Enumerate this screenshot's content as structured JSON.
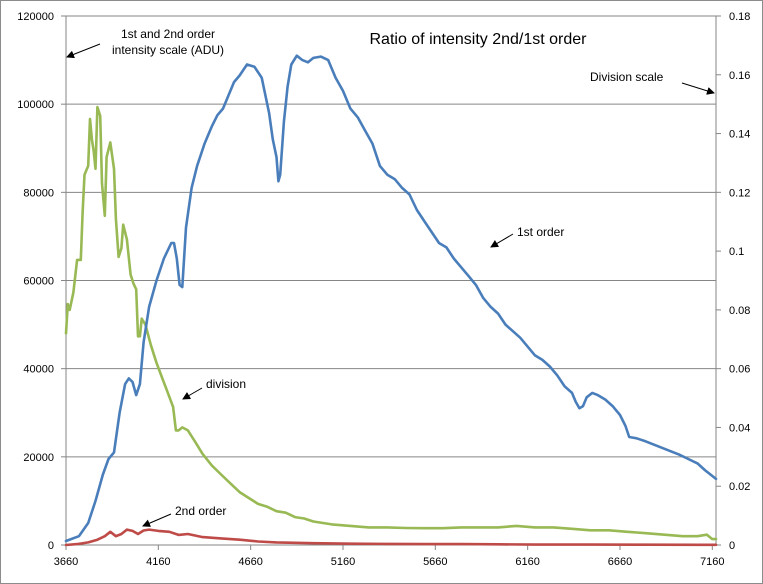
{
  "chart_data": {
    "type": "line",
    "title": "Ratio of intensity 2nd/1st order",
    "x_ticks": [
      3660,
      4160,
      4660,
      5160,
      5660,
      6160,
      6660,
      7160
    ],
    "xlim": [
      3660,
      7180
    ],
    "y_left": {
      "ticks": [
        0,
        20000,
        40000,
        60000,
        80000,
        100000,
        120000
      ],
      "ylim": [
        0,
        120000
      ]
    },
    "y_right": {
      "ticks": [
        "0",
        "0.02",
        "0.04",
        "0.06",
        "0.08",
        "0.1",
        "0.12",
        "0.14",
        "0.16",
        "0.18"
      ],
      "ylim": [
        0,
        0.18
      ]
    },
    "grid": true,
    "colors": {
      "first": "#4a7ebb",
      "second": "#be4b48",
      "division": "#98b954",
      "grid": "#868686"
    },
    "series": [
      {
        "name": "1st order",
        "axis": "left",
        "points": [
          [
            3660,
            900
          ],
          [
            3730,
            2000
          ],
          [
            3780,
            5000
          ],
          [
            3820,
            10000
          ],
          [
            3860,
            16000
          ],
          [
            3890,
            19500
          ],
          [
            3920,
            21000
          ],
          [
            3950,
            30000
          ],
          [
            3980,
            36500
          ],
          [
            4000,
            37800
          ],
          [
            4020,
            37000
          ],
          [
            4040,
            34000
          ],
          [
            4060,
            36500
          ],
          [
            4080,
            46000
          ],
          [
            4110,
            54000
          ],
          [
            4150,
            60000
          ],
          [
            4190,
            65000
          ],
          [
            4230,
            68500
          ],
          [
            4245,
            68500
          ],
          [
            4260,
            65000
          ],
          [
            4275,
            59000
          ],
          [
            4290,
            58500
          ],
          [
            4310,
            72000
          ],
          [
            4340,
            81000
          ],
          [
            4370,
            86000
          ],
          [
            4410,
            91000
          ],
          [
            4450,
            95000
          ],
          [
            4480,
            97500
          ],
          [
            4510,
            99000
          ],
          [
            4540,
            102000
          ],
          [
            4570,
            105000
          ],
          [
            4600,
            106500
          ],
          [
            4640,
            109000
          ],
          [
            4680,
            108500
          ],
          [
            4720,
            106000
          ],
          [
            4760,
            98000
          ],
          [
            4780,
            92000
          ],
          [
            4800,
            88000
          ],
          [
            4810,
            82500
          ],
          [
            4820,
            84000
          ],
          [
            4840,
            96000
          ],
          [
            4860,
            104000
          ],
          [
            4880,
            109000
          ],
          [
            4910,
            111000
          ],
          [
            4940,
            110000
          ],
          [
            4970,
            109500
          ],
          [
            5000,
            110500
          ],
          [
            5040,
            110800
          ],
          [
            5080,
            110000
          ],
          [
            5120,
            106000
          ],
          [
            5160,
            103000
          ],
          [
            5200,
            99000
          ],
          [
            5240,
            97000
          ],
          [
            5280,
            94000
          ],
          [
            5320,
            91000
          ],
          [
            5360,
            86000
          ],
          [
            5400,
            84000
          ],
          [
            5440,
            83000
          ],
          [
            5480,
            81000
          ],
          [
            5520,
            79500
          ],
          [
            5560,
            76000
          ],
          [
            5600,
            73500
          ],
          [
            5640,
            71000
          ],
          [
            5680,
            68500
          ],
          [
            5720,
            67500
          ],
          [
            5760,
            65000
          ],
          [
            5800,
            63000
          ],
          [
            5840,
            61000
          ],
          [
            5880,
            59000
          ],
          [
            5920,
            56000
          ],
          [
            5960,
            54000
          ],
          [
            6000,
            52500
          ],
          [
            6040,
            50000
          ],
          [
            6080,
            48500
          ],
          [
            6120,
            47000
          ],
          [
            6160,
            45000
          ],
          [
            6200,
            43000
          ],
          [
            6240,
            42000
          ],
          [
            6280,
            40500
          ],
          [
            6320,
            38500
          ],
          [
            6360,
            36000
          ],
          [
            6400,
            34500
          ],
          [
            6420,
            32500
          ],
          [
            6440,
            31000
          ],
          [
            6460,
            31500
          ],
          [
            6480,
            33500
          ],
          [
            6510,
            34500
          ],
          [
            6540,
            34000
          ],
          [
            6580,
            33000
          ],
          [
            6620,
            31500
          ],
          [
            6660,
            29500
          ],
          [
            6690,
            27000
          ],
          [
            6710,
            24500
          ],
          [
            6750,
            24200
          ],
          [
            6800,
            23500
          ],
          [
            6860,
            22500
          ],
          [
            6920,
            21500
          ],
          [
            6980,
            20500
          ],
          [
            7030,
            19500
          ],
          [
            7080,
            18500
          ],
          [
            7120,
            17000
          ],
          [
            7180,
            15000
          ]
        ]
      },
      {
        "name": "2nd order",
        "axis": "left",
        "points": [
          [
            3660,
            0
          ],
          [
            3720,
            200
          ],
          [
            3780,
            600
          ],
          [
            3830,
            1200
          ],
          [
            3870,
            2000
          ],
          [
            3900,
            3000
          ],
          [
            3930,
            2000
          ],
          [
            3960,
            2500
          ],
          [
            3990,
            3500
          ],
          [
            4020,
            3200
          ],
          [
            4050,
            2500
          ],
          [
            4080,
            3300
          ],
          [
            4110,
            3500
          ],
          [
            4160,
            3200
          ],
          [
            4220,
            3000
          ],
          [
            4270,
            2300
          ],
          [
            4320,
            2500
          ],
          [
            4400,
            1800
          ],
          [
            4500,
            1500
          ],
          [
            4600,
            1200
          ],
          [
            4700,
            800
          ],
          [
            4800,
            600
          ],
          [
            4900,
            500
          ],
          [
            5000,
            400
          ],
          [
            5200,
            300
          ],
          [
            5400,
            250
          ],
          [
            5600,
            200
          ],
          [
            5800,
            200
          ],
          [
            6000,
            150
          ],
          [
            6200,
            100
          ],
          [
            6500,
            80
          ],
          [
            6800,
            60
          ],
          [
            7100,
            50
          ],
          [
            7180,
            40
          ]
        ]
      },
      {
        "name": "division",
        "axis": "right",
        "points": [
          [
            3660,
            0.072
          ],
          [
            3670,
            0.082
          ],
          [
            3680,
            0.08
          ],
          [
            3700,
            0.086
          ],
          [
            3720,
            0.097
          ],
          [
            3740,
            0.097
          ],
          [
            3750,
            0.113
          ],
          [
            3760,
            0.126
          ],
          [
            3780,
            0.129
          ],
          [
            3790,
            0.145
          ],
          [
            3800,
            0.138
          ],
          [
            3810,
            0.134
          ],
          [
            3820,
            0.128
          ],
          [
            3830,
            0.149
          ],
          [
            3845,
            0.146
          ],
          [
            3855,
            0.123
          ],
          [
            3870,
            0.112
          ],
          [
            3880,
            0.132
          ],
          [
            3900,
            0.137
          ],
          [
            3920,
            0.128
          ],
          [
            3930,
            0.111
          ],
          [
            3945,
            0.098
          ],
          [
            3960,
            0.101
          ],
          [
            3970,
            0.109
          ],
          [
            3990,
            0.104
          ],
          [
            4010,
            0.092
          ],
          [
            4025,
            0.089
          ],
          [
            4040,
            0.087
          ],
          [
            4050,
            0.071
          ],
          [
            4060,
            0.071
          ],
          [
            4070,
            0.077
          ],
          [
            4090,
            0.075
          ],
          [
            4120,
            0.068
          ],
          [
            4150,
            0.062
          ],
          [
            4180,
            0.057
          ],
          [
            4210,
            0.052
          ],
          [
            4240,
            0.047
          ],
          [
            4255,
            0.039
          ],
          [
            4270,
            0.039
          ],
          [
            4290,
            0.04
          ],
          [
            4320,
            0.039
          ],
          [
            4360,
            0.035
          ],
          [
            4400,
            0.031
          ],
          [
            4450,
            0.027
          ],
          [
            4500,
            0.024
          ],
          [
            4550,
            0.021
          ],
          [
            4600,
            0.018
          ],
          [
            4650,
            0.016
          ],
          [
            4700,
            0.014
          ],
          [
            4750,
            0.013
          ],
          [
            4800,
            0.0115
          ],
          [
            4850,
            0.011
          ],
          [
            4900,
            0.0095
          ],
          [
            4950,
            0.009
          ],
          [
            5000,
            0.008
          ],
          [
            5100,
            0.007
          ],
          [
            5200,
            0.0065
          ],
          [
            5300,
            0.006
          ],
          [
            5400,
            0.006
          ],
          [
            5500,
            0.0058
          ],
          [
            5600,
            0.0057
          ],
          [
            5700,
            0.0057
          ],
          [
            5800,
            0.006
          ],
          [
            5900,
            0.006
          ],
          [
            6000,
            0.006
          ],
          [
            6100,
            0.0065
          ],
          [
            6200,
            0.006
          ],
          [
            6300,
            0.006
          ],
          [
            6400,
            0.0055
          ],
          [
            6500,
            0.005
          ],
          [
            6600,
            0.005
          ],
          [
            6700,
            0.0045
          ],
          [
            6800,
            0.004
          ],
          [
            6900,
            0.0035
          ],
          [
            7000,
            0.003
          ],
          [
            7080,
            0.003
          ],
          [
            7130,
            0.0035
          ],
          [
            7160,
            0.002
          ],
          [
            7180,
            0.002
          ]
        ]
      }
    ],
    "annotations": {
      "left_scale_line1": "1st and 2nd order",
      "left_scale_line2": "intensity scale (ADU)",
      "right_scale": "Division scale",
      "first_order": "1st order",
      "second_order": "2nd order",
      "division": "division"
    }
  }
}
